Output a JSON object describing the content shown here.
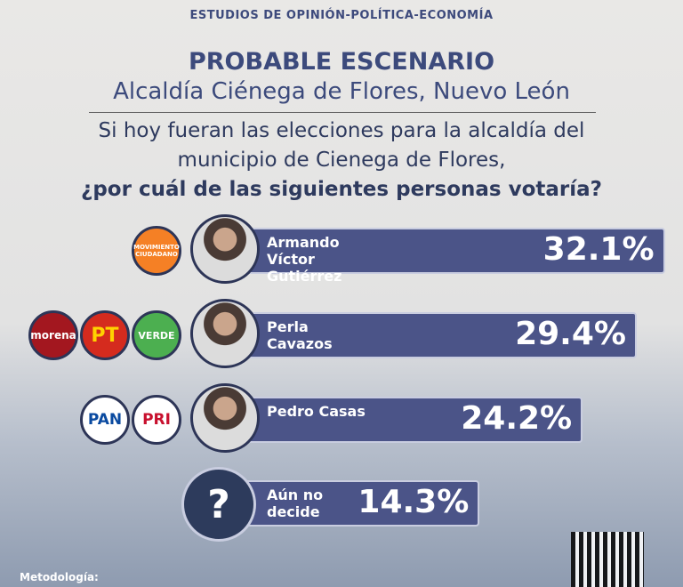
{
  "chart_data": {
    "type": "bar",
    "header": "ESTUDIOS DE OPINIÓN-POLÍTICA-ECONOMÍA",
    "title": "PROBABLE ESCENARIO",
    "subtitle": "Alcaldía Ciénega de Flores, Nuevo León",
    "question": [
      "Si hoy fueran las elecciones para la alcaldía del",
      "municipio de Cienega de Flores,",
      "¿por cuál de las siguientes personas votaría?"
    ],
    "categories": [
      "Armando Víctor Gutiérrez",
      "Perla Cavazos",
      "Pedro Casas",
      "Aún no decide"
    ],
    "values": [
      32.1,
      29.4,
      24.2,
      14.3
    ],
    "value_labels": [
      "32.1%",
      "29.4%",
      "24.2%",
      "14.3%"
    ],
    "color": "#4b5488"
  },
  "logos": [
    [
      "MOVIMIENTO CIUDADANO"
    ],
    [
      "morena",
      "PT",
      "VERDE"
    ],
    [
      "PAN",
      "PRI"
    ]
  ],
  "undecided_icon": "?",
  "footer": "Metodología:"
}
